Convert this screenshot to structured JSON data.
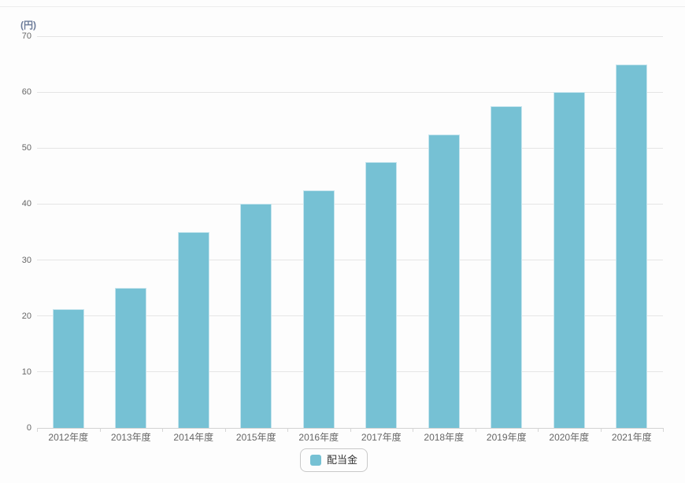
{
  "chart_data": {
    "type": "bar",
    "title": "",
    "xlabel": "",
    "ylabel": "(円)",
    "categories": [
      "2012年度",
      "2013年度",
      "2014年度",
      "2015年度",
      "2016年度",
      "2017年度",
      "2018年度",
      "2019年度",
      "2020年度",
      "2021年度"
    ],
    "series": [
      {
        "name": "配当金",
        "values": [
          21.25,
          25,
          35,
          40,
          42.5,
          47.5,
          52.5,
          57.5,
          60,
          65
        ]
      }
    ],
    "ylim": [
      0,
      70
    ],
    "yticks": [
      0,
      10,
      20,
      30,
      40,
      50,
      60,
      70
    ],
    "grid": true,
    "legend_position": "bottom-center",
    "colors": {
      "bar_fill": "#76c1d4",
      "bar_border": "#c6e5ee",
      "gridline": "#e5e5e5",
      "axis_line": "#d3d3d3",
      "tick_label": "#666666",
      "y_title": "#6b7b99",
      "legend_text": "#333333",
      "background": "#fdfdfd"
    }
  },
  "legend": {
    "items": [
      {
        "label": "配当金",
        "color": "#76c1d4"
      }
    ]
  }
}
